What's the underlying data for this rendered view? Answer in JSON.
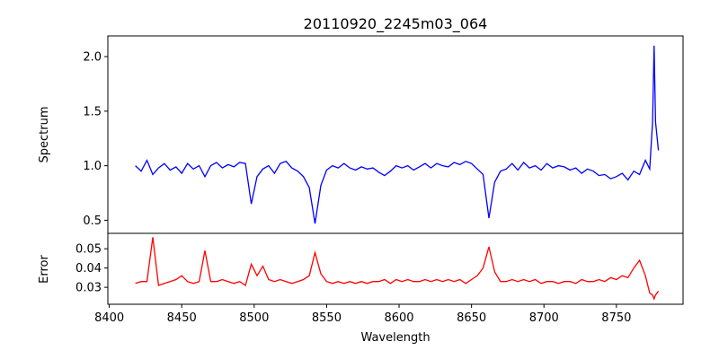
{
  "chart_data": [
    {
      "type": "line",
      "title": "20110920_2245m03_064",
      "xlabel": "",
      "ylabel": "Spectrum",
      "xlim": [
        8399,
        8796
      ],
      "ylim": [
        0.38,
        2.19
      ],
      "yticks": [
        0.5,
        1.0,
        1.5,
        2.0
      ],
      "ytick_labels": [
        "0.5",
        "1.0",
        "1.5",
        "2.0"
      ],
      "grid": false,
      "color": "#0000ff",
      "series": [
        {
          "name": "Spectrum",
          "values": [
            1.0,
            0.95,
            1.05,
            0.92,
            0.98,
            1.02,
            0.96,
            0.99,
            0.93,
            1.02,
            0.97,
            1.0,
            0.9,
            1.0,
            1.03,
            0.98,
            1.01,
            0.99,
            1.03,
            1.02,
            0.65,
            0.9,
            0.97,
            1.0,
            0.93,
            1.02,
            1.04,
            0.98,
            0.95,
            0.9,
            0.8,
            0.47,
            0.82,
            0.96,
            1.0,
            0.98,
            1.02,
            0.98,
            0.96,
            0.99,
            0.97,
            0.98,
            0.94,
            0.91,
            0.95,
            1.0,
            0.98,
            1.0,
            0.96,
            0.99,
            1.02,
            0.98,
            1.02,
            1.0,
            0.99,
            1.03,
            1.01,
            1.04,
            1.02,
            0.97,
            0.92,
            0.52,
            0.85,
            0.95,
            0.97,
            1.02,
            0.96,
            1.03,
            0.98,
            1.0,
            0.96,
            1.02,
            0.98,
            1.0,
            0.99,
            0.96,
            0.98,
            0.93,
            0.97,
            0.95,
            0.91,
            0.92,
            0.88,
            0.9,
            0.93,
            0.87,
            0.95,
            0.92,
            1.05,
            0.97,
            1.4,
            2.1,
            1.4,
            1.14
          ]
        }
      ]
    },
    {
      "type": "line",
      "title": "",
      "xlabel": "Wavelength",
      "ylabel": "Error",
      "xlim": [
        8399,
        8796
      ],
      "ylim": [
        0.0212,
        0.058
      ],
      "xticks": [
        8400,
        8450,
        8500,
        8550,
        8600,
        8650,
        8700,
        8750
      ],
      "xtick_labels": [
        "8400",
        "8450",
        "8500",
        "8550",
        "8600",
        "8650",
        "8700",
        "8750"
      ],
      "yticks": [
        0.03,
        0.04,
        0.05
      ],
      "ytick_labels": [
        "0.03",
        "0.04",
        "0.05"
      ],
      "grid": false,
      "color": "#ff0000",
      "series": [
        {
          "name": "Error",
          "values": [
            0.032,
            0.033,
            0.033,
            0.056,
            0.031,
            0.032,
            0.033,
            0.034,
            0.036,
            0.033,
            0.032,
            0.033,
            0.049,
            0.033,
            0.033,
            0.034,
            0.033,
            0.032,
            0.033,
            0.031,
            0.042,
            0.036,
            0.041,
            0.034,
            0.033,
            0.034,
            0.033,
            0.032,
            0.033,
            0.034,
            0.036,
            0.048,
            0.037,
            0.033,
            0.032,
            0.033,
            0.032,
            0.033,
            0.032,
            0.033,
            0.032,
            0.033,
            0.033,
            0.034,
            0.032,
            0.034,
            0.033,
            0.034,
            0.033,
            0.033,
            0.034,
            0.033,
            0.034,
            0.033,
            0.034,
            0.033,
            0.034,
            0.032,
            0.034,
            0.036,
            0.04,
            0.051,
            0.038,
            0.033,
            0.033,
            0.034,
            0.033,
            0.034,
            0.033,
            0.034,
            0.032,
            0.033,
            0.033,
            0.032,
            0.033,
            0.033,
            0.032,
            0.034,
            0.033,
            0.033,
            0.034,
            0.033,
            0.035,
            0.034,
            0.036,
            0.035,
            0.04,
            0.044,
            0.036,
            0.027,
            0.026,
            0.024,
            0.026,
            0.028
          ]
        }
      ]
    }
  ],
  "x": [
    8418,
    8422,
    8426,
    8430,
    8434,
    8438,
    8442,
    8446,
    8450,
    8454,
    8458,
    8462,
    8466,
    8470,
    8474,
    8478,
    8482,
    8486,
    8490,
    8494,
    8498,
    8502,
    8506,
    8510,
    8514,
    8518,
    8522,
    8526,
    8530,
    8534,
    8538,
    8542,
    8546,
    8550,
    8554,
    8558,
    8562,
    8566,
    8570,
    8574,
    8578,
    8582,
    8586,
    8590,
    8594,
    8598,
    8602,
    8606,
    8610,
    8614,
    8618,
    8622,
    8626,
    8630,
    8634,
    8638,
    8642,
    8646,
    8650,
    8654,
    8658,
    8662,
    8666,
    8670,
    8674,
    8678,
    8682,
    8686,
    8690,
    8694,
    8698,
    8702,
    8706,
    8710,
    8714,
    8718,
    8722,
    8726,
    8730,
    8734,
    8738,
    8742,
    8746,
    8750,
    8754,
    8758,
    8762,
    8766,
    8770,
    8773,
    8775,
    8776,
    8777,
    8779
  ]
}
